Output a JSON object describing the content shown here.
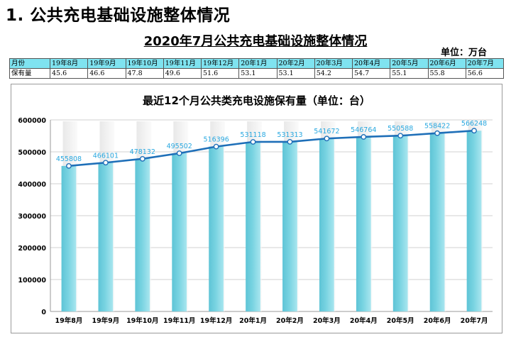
{
  "heading": "1. 公共充电基础设施整体情况",
  "table": {
    "title": "2020年7月公共充电基础设施整体情况",
    "unit": "单位：万台",
    "row_header_month": "月份",
    "row_header_value": "保有量",
    "months": [
      "19年8月",
      "19年9月",
      "19年10月",
      "19年11月",
      "19年12月",
      "20年1月",
      "20年2月",
      "20年3月",
      "20年4月",
      "20年5月",
      "20年6月",
      "20年7月"
    ],
    "values": [
      "45.6",
      "46.6",
      "47.8",
      "49.6",
      "51.6",
      "53.1",
      "53.1",
      "54.2",
      "54.7",
      "55.1",
      "55.8",
      "56.6"
    ]
  },
  "chart_data": {
    "type": "bar",
    "title": "最近12个月公共类充电设施保有量（单位：台）",
    "categories": [
      "19年8月",
      "19年9月",
      "19年10月",
      "19年11月",
      "19年12月",
      "20年1月",
      "20年2月",
      "20年3月",
      "20年4月",
      "20年5月",
      "20年6月",
      "20年7月"
    ],
    "values": [
      455808,
      466101,
      478132,
      495502,
      516396,
      531118,
      531313,
      541672,
      546764,
      550588,
      558422,
      566248
    ],
    "overlay": "line",
    "ylim": [
      0,
      600000
    ],
    "yticks": [
      0,
      100000,
      200000,
      300000,
      400000,
      500000,
      600000
    ],
    "grid": true,
    "colors": {
      "bar": "#78d3e1",
      "line": "#1e6fb8",
      "label": "#29a8e0"
    }
  }
}
